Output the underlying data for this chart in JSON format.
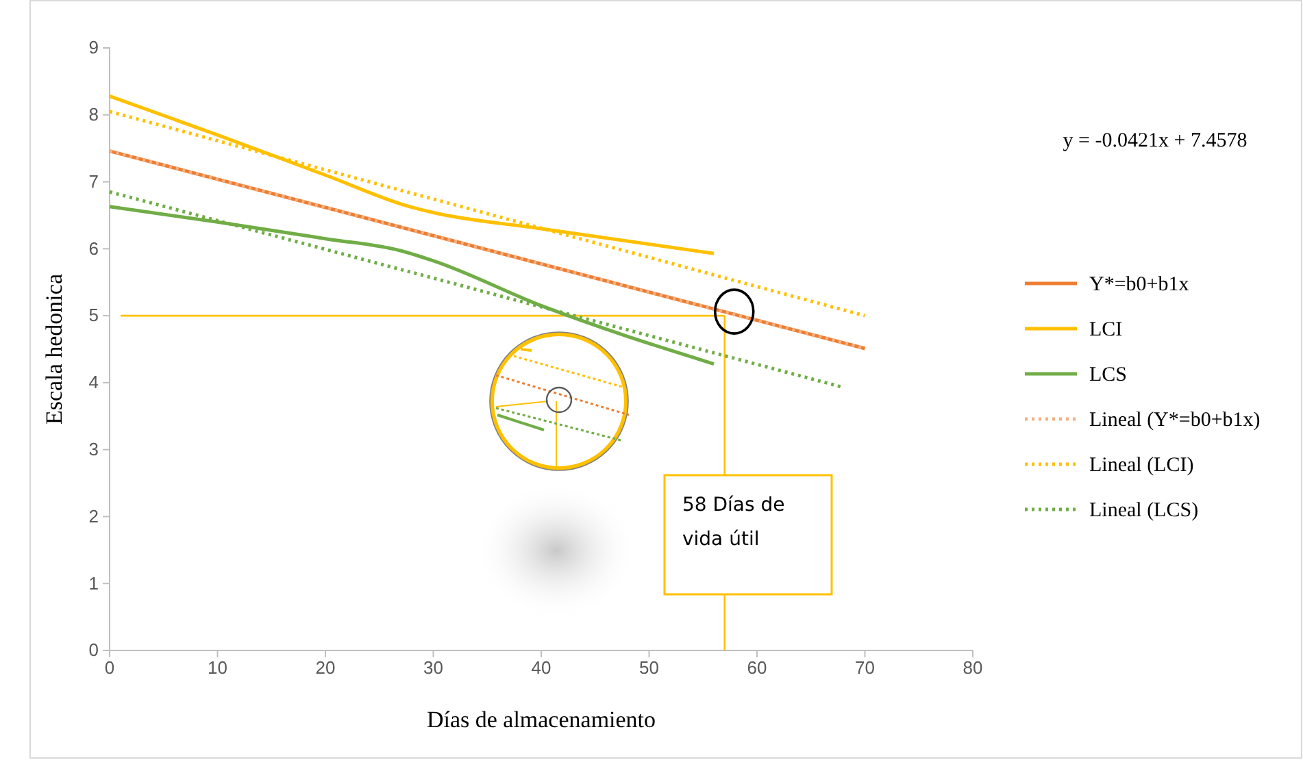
{
  "chart_data": {
    "type": "line",
    "xlabel": "Días de almacenamiento",
    "ylabel": "Escala hedonica",
    "xlim": [
      0,
      80
    ],
    "xticks": [
      0,
      10,
      20,
      30,
      40,
      50,
      60,
      70,
      80
    ],
    "ylim": [
      0,
      9
    ],
    "yticks": [
      0,
      1,
      2,
      3,
      4,
      5,
      6,
      7,
      8,
      9
    ],
    "grid": false,
    "legend": "right",
    "line_style": "solid",
    "marker": "none",
    "series": [
      {
        "name": "Y*=b0+b1x",
        "color": "#ed7d31",
        "x": [
          0,
          70
        ],
        "values": [
          7.46,
          4.51
        ]
      },
      {
        "name": "LCI",
        "color": "#ffc000",
        "x": [
          0,
          10,
          20,
          28,
          30,
          40,
          56
        ],
        "values": [
          8.28,
          7.7,
          7.1,
          6.62,
          6.54,
          6.3,
          5.93
        ]
      },
      {
        "name": "LCS",
        "color": "#70ad47",
        "x": [
          0,
          10,
          20,
          27,
          30,
          40,
          56
        ],
        "values": [
          6.63,
          6.4,
          6.15,
          5.97,
          5.82,
          5.15,
          4.28
        ]
      },
      {
        "name": "Lineal (Y*=b0+b1x)",
        "color": "#f4b183",
        "line_style": "dotted",
        "x": [
          0,
          70
        ],
        "values": [
          7.46,
          4.51
        ]
      },
      {
        "name": "Lineal (LCI)",
        "color": "#ffc000",
        "line_style": "dotted",
        "x": [
          0,
          70
        ],
        "values": [
          8.05,
          5.0
        ]
      },
      {
        "name": "Lineal (LCS)",
        "color": "#70ad47",
        "line_style": "dotted",
        "x": [
          0,
          68
        ],
        "values": [
          6.85,
          3.93
        ]
      }
    ],
    "ref_lines": [
      {
        "axis": "y",
        "value": 5,
        "color": "#ffc000"
      },
      {
        "axis": "x",
        "value": 57,
        "color": "#ffc000"
      }
    ],
    "annotations": [
      "y = -0.0421x + 7.4578",
      "58 Días de vida útil"
    ]
  }
}
